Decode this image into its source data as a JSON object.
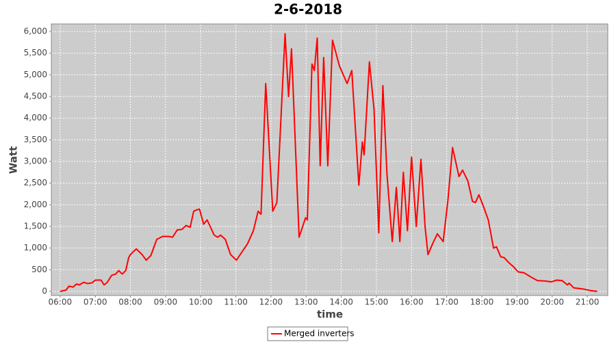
{
  "chart_data": {
    "type": "line",
    "title": "2-6-2018",
    "x_label": "time",
    "y_label": "Watt",
    "x": [
      "06:00",
      "06:10",
      "06:15",
      "06:22",
      "06:28",
      "06:33",
      "06:40",
      "06:47",
      "06:55",
      "07:00",
      "07:10",
      "07:15",
      "07:20",
      "07:28",
      "07:35",
      "07:40",
      "07:46",
      "07:52",
      "07:57",
      "08:00",
      "08:10",
      "08:20",
      "08:27",
      "08:35",
      "08:45",
      "08:55",
      "09:05",
      "09:12",
      "09:20",
      "09:28",
      "09:35",
      "09:42",
      "09:48",
      "09:53",
      "09:58",
      "10:05",
      "10:11",
      "10:23",
      "10:29",
      "10:34",
      "10:42",
      "10:51",
      "11:01",
      "11:10",
      "11:20",
      "11:30",
      "11:38",
      "11:43",
      "11:51",
      "12:03",
      "12:10",
      "12:24",
      "12:30",
      "12:35",
      "12:48",
      "12:59",
      "13:02",
      "13:10",
      "13:14",
      "13:19",
      "13:24",
      "13:30",
      "13:37",
      "13:45",
      "13:57",
      "14:10",
      "14:18",
      "14:30",
      "14:36",
      "14:39",
      "14:48",
      "14:56",
      "15:04",
      "15:11",
      "15:18",
      "15:27",
      "15:34",
      "15:40",
      "15:46",
      "15:53",
      "16:00",
      "16:08",
      "16:16",
      "16:23",
      "16:28",
      "16:36",
      "16:44",
      "16:54",
      "17:02",
      "17:10",
      "17:21",
      "17:27",
      "17:36",
      "17:44",
      "17:49",
      "17:55",
      "18:03",
      "18:11",
      "18:20",
      "18:25",
      "18:32",
      "18:38",
      "18:47",
      "18:54",
      "19:02",
      "19:12",
      "19:24",
      "19:35",
      "19:47",
      "19:59",
      "20:08",
      "20:17",
      "20:26",
      "20:29",
      "20:37",
      "20:51",
      "21:05",
      "21:17"
    ],
    "series": [
      {
        "name": "Merged inverters",
        "color": "#ff0000",
        "values": [
          0,
          30,
          120,
          100,
          170,
          150,
          210,
          180,
          200,
          260,
          260,
          150,
          200,
          370,
          400,
          480,
          400,
          480,
          780,
          850,
          980,
          850,
          720,
          830,
          1200,
          1270,
          1270,
          1250,
          1420,
          1430,
          1520,
          1480,
          1850,
          1880,
          1900,
          1550,
          1650,
          1300,
          1250,
          1300,
          1200,
          850,
          720,
          900,
          1100,
          1400,
          1850,
          1780,
          4800,
          1850,
          2050,
          5950,
          4500,
          5600,
          1250,
          1700,
          1650,
          5250,
          5100,
          5850,
          2900,
          5400,
          2900,
          5800,
          5200,
          4800,
          5100,
          2450,
          3450,
          3150,
          5300,
          4200,
          1350,
          4750,
          2700,
          1150,
          2400,
          1150,
          2750,
          1400,
          3100,
          1500,
          3050,
          1500,
          850,
          1100,
          1330,
          1150,
          2100,
          3320,
          2650,
          2800,
          2550,
          2080,
          2050,
          2230,
          1950,
          1650,
          1000,
          1030,
          800,
          780,
          650,
          570,
          450,
          430,
          330,
          250,
          240,
          220,
          260,
          250,
          150,
          190,
          80,
          60,
          20,
          0
        ]
      }
    ],
    "xlim": [
      "05:45",
      "21:35"
    ],
    "xticks": [
      "06:00",
      "07:00",
      "08:00",
      "09:00",
      "10:00",
      "11:00",
      "12:00",
      "13:00",
      "14:00",
      "15:00",
      "16:00",
      "17:00",
      "18:00",
      "19:00",
      "20:00",
      "21:00"
    ],
    "ylim": [
      -95,
      6175
    ],
    "yticks": [
      0,
      500,
      {
        "value": 1000,
        "label": "1,000"
      },
      {
        "value": 1500,
        "label": "1,500"
      },
      {
        "value": 2000,
        "label": "2,000"
      },
      {
        "value": 2500,
        "label": "2,500"
      },
      {
        "value": 3000,
        "label": "3,000"
      },
      {
        "value": 3500,
        "label": "3,500"
      },
      {
        "value": 4000,
        "label": "4,000"
      },
      {
        "value": 4500,
        "label": "4,500"
      },
      {
        "value": 5000,
        "label": "5,000"
      },
      {
        "value": 5500,
        "label": "5,500"
      },
      {
        "value": 6000,
        "label": "6,000"
      }
    ],
    "grid": true,
    "legend": "bottom"
  }
}
